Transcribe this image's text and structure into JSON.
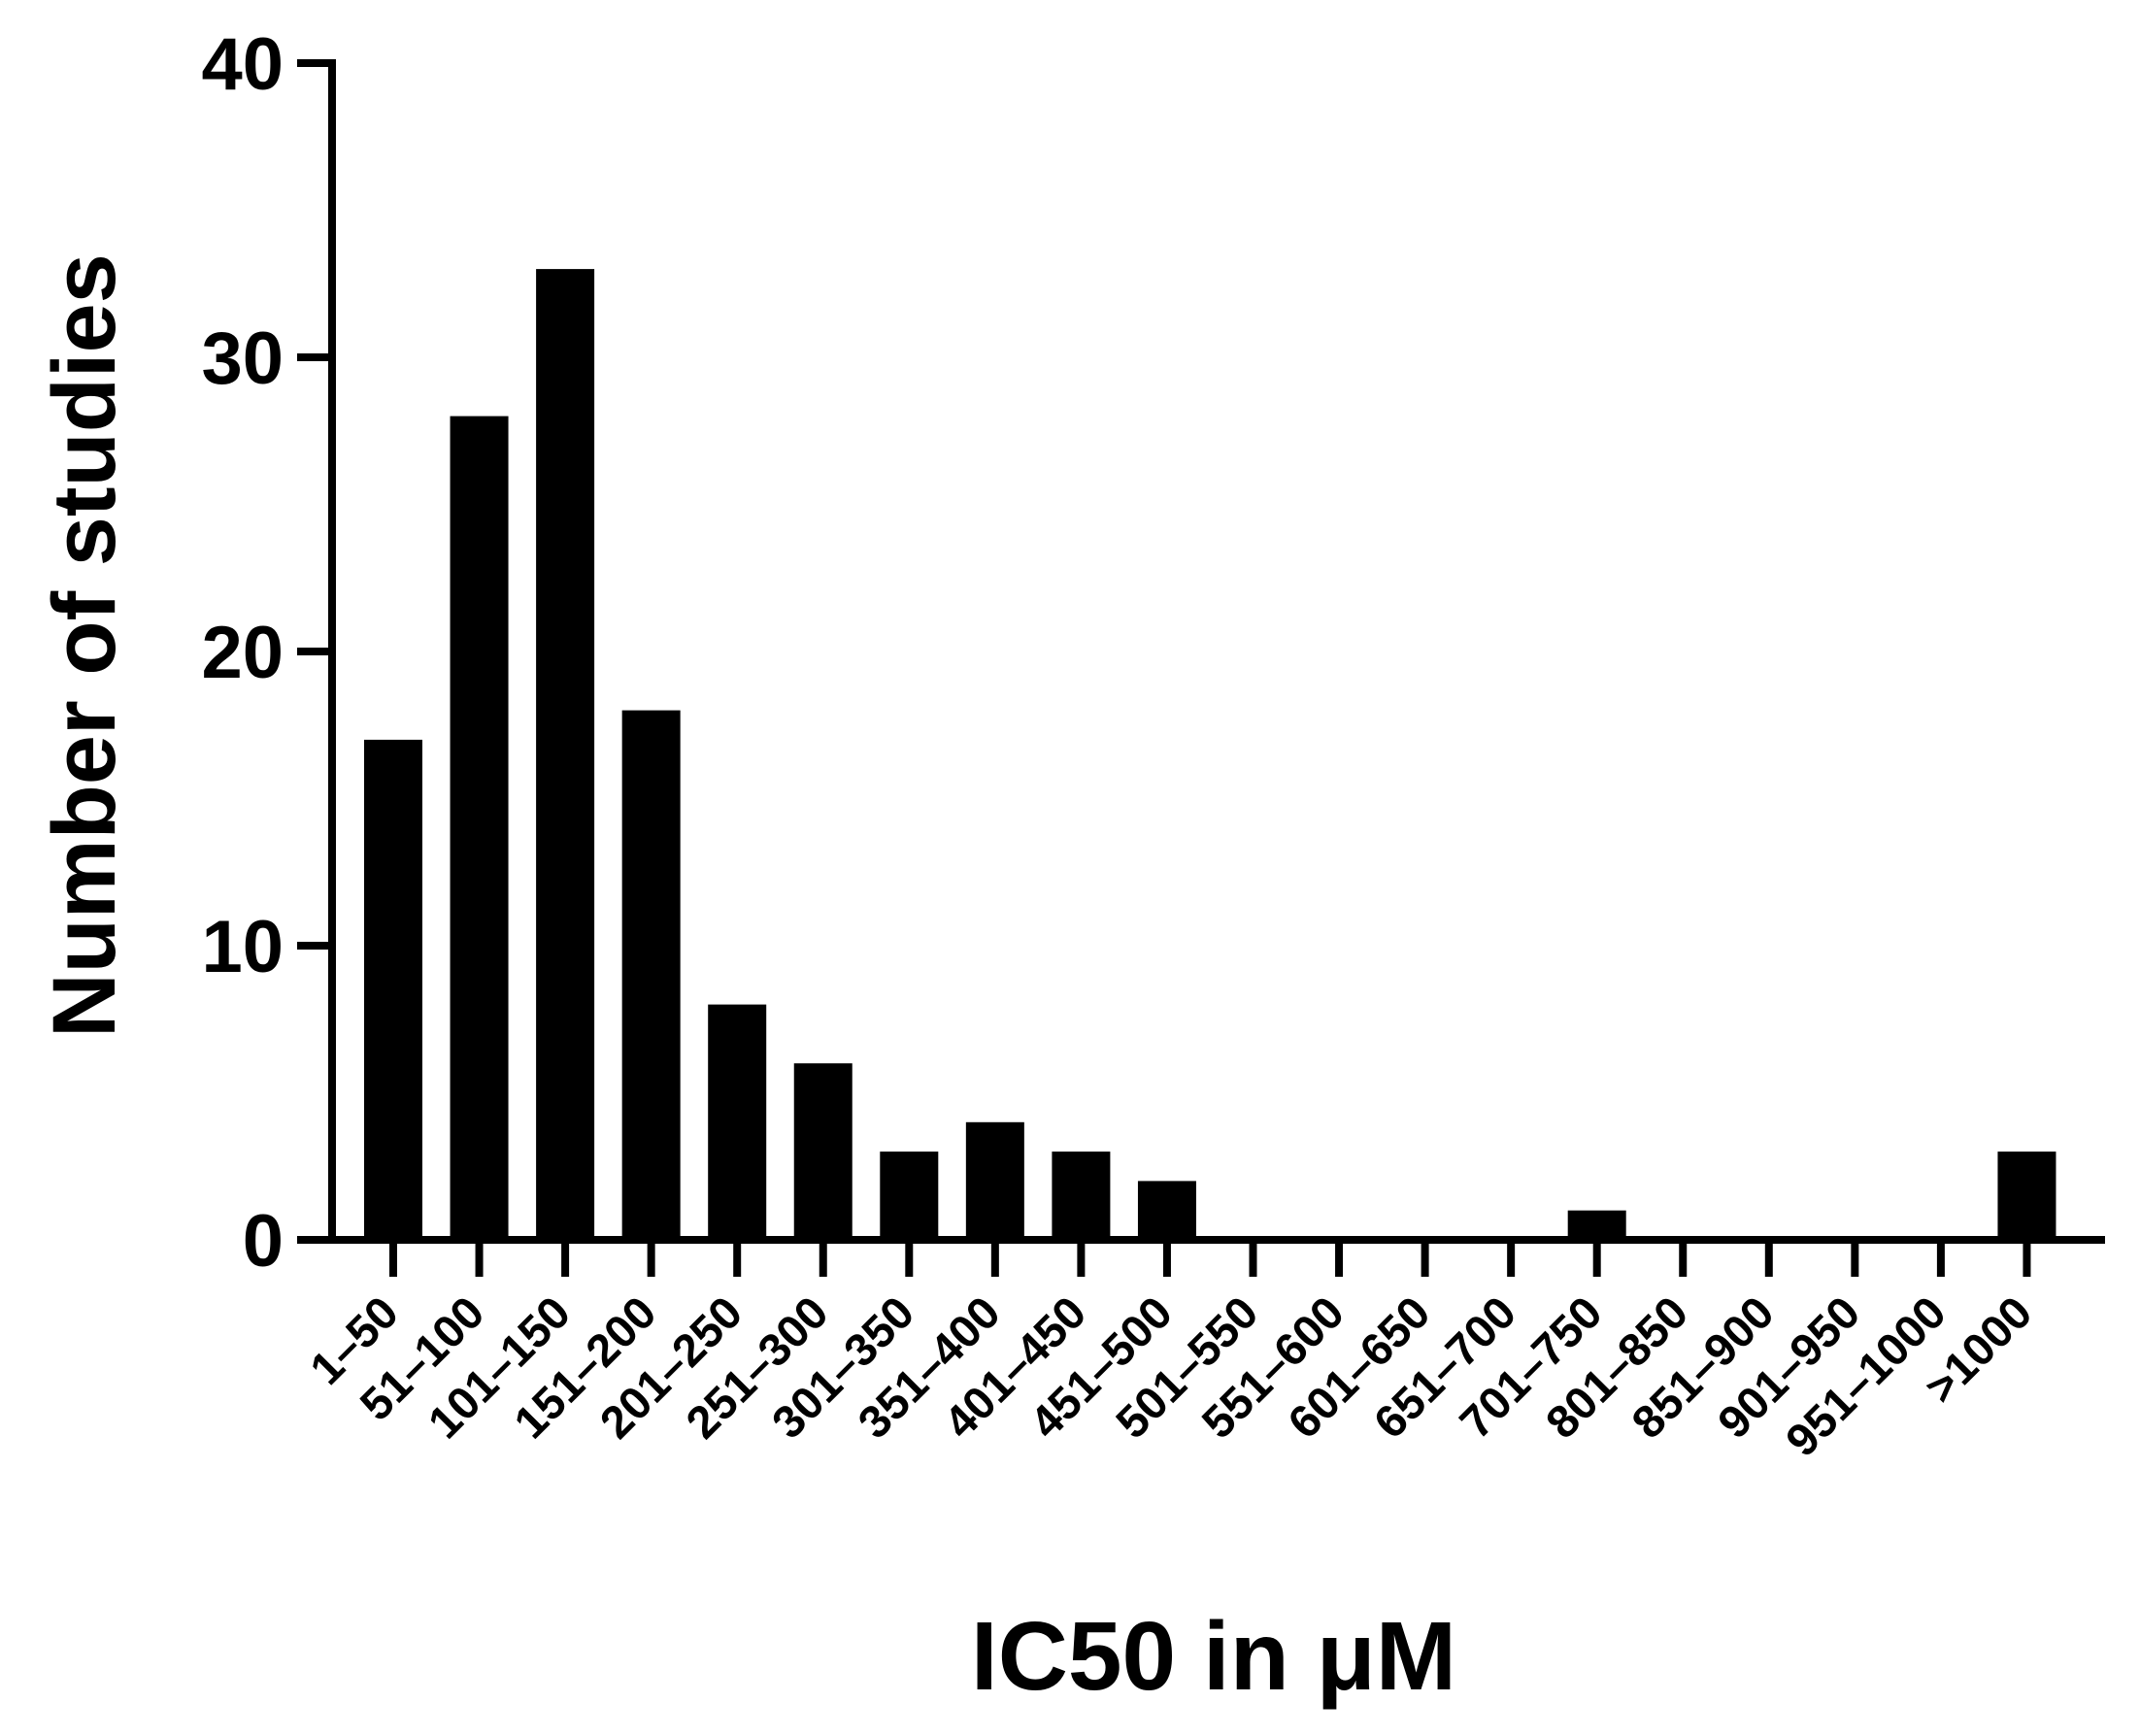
{
  "chart_data": {
    "type": "bar",
    "title": "",
    "xlabel": "IC50 in μM",
    "ylabel": "Number of studies",
    "ylim": [
      0,
      40
    ],
    "yticks": [
      0,
      10,
      20,
      30,
      40
    ],
    "grid": false,
    "categories": [
      "1–50",
      "51–100",
      "101–150",
      "151–200",
      "201–250",
      "251–300",
      "301–350",
      "351–400",
      "401–450",
      "451–500",
      "501–550",
      "551–600",
      "601–650",
      "651–700",
      "701–750",
      "801–850",
      "851–900",
      "901–950",
      "951–1000",
      ">1000"
    ],
    "values": [
      17,
      28,
      33,
      18,
      8,
      6,
      3,
      4,
      3,
      2,
      0,
      0,
      0,
      0,
      1,
      0,
      0,
      0,
      0,
      3
    ],
    "bar_color": "#000000"
  }
}
